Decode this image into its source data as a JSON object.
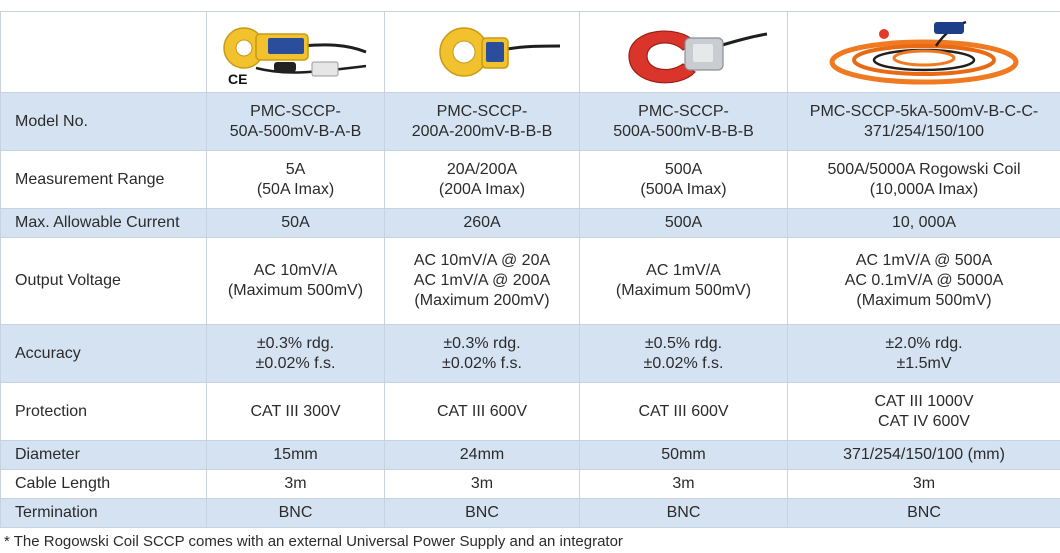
{
  "products": [
    {
      "icon": "clamp-50a-icon",
      "color": "#f2c12e",
      "ce_mark": "CE"
    },
    {
      "icon": "clamp-200a-icon",
      "color": "#f2c12e"
    },
    {
      "icon": "clamp-500a-icon",
      "color": "#d9352b"
    },
    {
      "icon": "rogowski-coil-icon",
      "color": "#f07a22"
    }
  ],
  "rows": [
    {
      "label": "Model No.",
      "shade": true,
      "cells": [
        [
          "PMC-SCCP-",
          "50A-500mV-B-A-B"
        ],
        [
          "PMC-SCCP-",
          "200A-200mV-B-B-B"
        ],
        [
          "PMC-SCCP-",
          "500A-500mV-B-B-B"
        ],
        [
          "PMC-SCCP-5kA-500mV-B-C-C-",
          "371/254/150/100"
        ]
      ]
    },
    {
      "label": "Measurement Range",
      "shade": false,
      "cells": [
        [
          "5A",
          "(50A Imax)"
        ],
        [
          "20A/200A",
          "(200A Imax)"
        ],
        [
          "500A",
          "(500A Imax)"
        ],
        [
          "500A/5000A Rogowski Coil",
          "(10,000A Imax)"
        ]
      ]
    },
    {
      "label": "Max. Allowable Current",
      "shade": true,
      "cells": [
        [
          "50A"
        ],
        [
          "260A"
        ],
        [
          "500A"
        ],
        [
          "10, 000A"
        ]
      ]
    },
    {
      "label": "Output Voltage",
      "shade": false,
      "cells": [
        [
          "AC 10mV/A",
          "(Maximum 500mV)"
        ],
        [
          "AC 10mV/A @ 20A",
          "AC 1mV/A @ 200A",
          "(Maximum 200mV)"
        ],
        [
          "AC 1mV/A",
          "(Maximum 500mV)"
        ],
        [
          "AC 1mV/A @ 500A",
          "AC 0.1mV/A @ 5000A",
          "(Maximum 500mV)"
        ]
      ]
    },
    {
      "label": "Accuracy",
      "shade": true,
      "cells": [
        [
          "±0.3% rdg.",
          "±0.02% f.s."
        ],
        [
          "±0.3% rdg.",
          "±0.02% f.s."
        ],
        [
          "±0.5% rdg.",
          "±0.02% f.s."
        ],
        [
          "±2.0% rdg.",
          "±1.5mV"
        ]
      ]
    },
    {
      "label": "Protection",
      "shade": false,
      "cells": [
        [
          "CAT III 300V"
        ],
        [
          "CAT III 600V"
        ],
        [
          "CAT III 600V"
        ],
        [
          "CAT III 1000V",
          "CAT IV 600V"
        ]
      ]
    },
    {
      "label": "Diameter",
      "shade": true,
      "cells": [
        [
          "15mm"
        ],
        [
          "24mm"
        ],
        [
          "50mm"
        ],
        [
          "371/254/150/100 (mm)"
        ]
      ]
    },
    {
      "label": "Cable Length",
      "shade": false,
      "cells": [
        [
          "3m"
        ],
        [
          "3m"
        ],
        [
          "3m"
        ],
        [
          "3m"
        ]
      ]
    },
    {
      "label": "Termination",
      "shade": true,
      "cells": [
        [
          "BNC"
        ],
        [
          "BNC"
        ],
        [
          "BNC"
        ],
        [
          "BNC"
        ]
      ]
    }
  ],
  "footnote": "* The Rogowski Coil SCCP comes with an external Universal Power Supply and an integrator"
}
